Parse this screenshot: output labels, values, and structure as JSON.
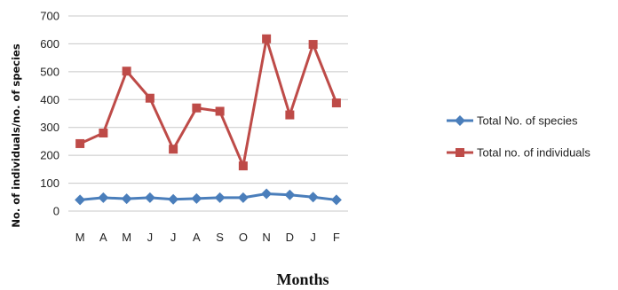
{
  "chart_data": {
    "type": "line",
    "xlabel": "Months",
    "ylabel": "No. of individuals/no. of species",
    "categories": [
      "M",
      "A",
      "M",
      "J",
      "J",
      "A",
      "S",
      "O",
      "N",
      "D",
      "J",
      "F"
    ],
    "ylim": [
      0,
      700
    ],
    "yticks": [
      0,
      100,
      200,
      300,
      400,
      500,
      600,
      700
    ],
    "grid": true,
    "legend_position": "right",
    "series": [
      {
        "name": "Total No. of species",
        "color": "#4a7ebb",
        "marker": "diamond",
        "values": [
          40,
          48,
          44,
          48,
          42,
          45,
          48,
          48,
          62,
          58,
          50,
          40
        ]
      },
      {
        "name": "Total no. of individuals",
        "color": "#be4b48",
        "marker": "square",
        "values": [
          242,
          280,
          502,
          405,
          222,
          370,
          358,
          162,
          618,
          345,
          598,
          388
        ]
      }
    ]
  }
}
